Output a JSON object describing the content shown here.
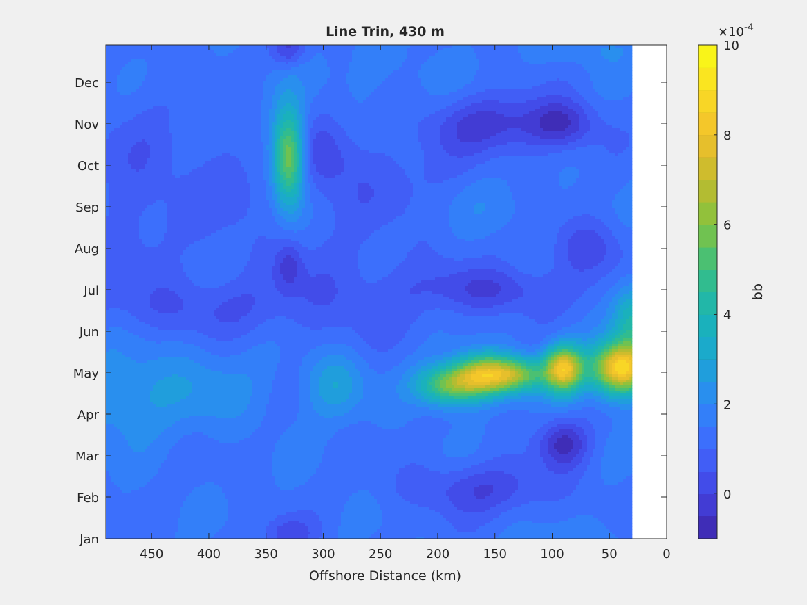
{
  "chart_data": {
    "type": "heatmap",
    "title": "Line Trin, 430 m",
    "xlabel": "Offshore Distance (km)",
    "ylabel": "",
    "x_reversed": true,
    "xlim": [
      0,
      490
    ],
    "x_ticks": [
      "450",
      "400",
      "350",
      "300",
      "250",
      "200",
      "150",
      "100",
      "50",
      "0"
    ],
    "x_tick_values": [
      450,
      400,
      350,
      300,
      250,
      200,
      150,
      100,
      50,
      0
    ],
    "y_ticks": [
      "Jan",
      "Feb",
      "Mar",
      "Apr",
      "May",
      "Jun",
      "Jul",
      "Aug",
      "Sep",
      "Oct",
      "Nov",
      "Dec"
    ],
    "y_range_months": [
      1,
      12.9
    ],
    "data_x_extent_km": [
      30,
      490
    ],
    "colorbar": {
      "label": "bb",
      "exponent_label": "×10",
      "exponent": "-4",
      "ticks": [
        "0",
        "2",
        "4",
        "6",
        "8",
        "10"
      ],
      "tick_values": [
        0,
        2,
        4,
        6,
        8,
        10
      ],
      "range": [
        -1,
        10
      ],
      "levels": 22
    },
    "colormap": [
      "#3e26a8",
      "#4343e2",
      "#4067fd",
      "#2e87f7",
      "#1ba6d3",
      "#1ab4b4",
      "#38bf83",
      "#82c340",
      "#c3ba2d",
      "#f2c02c",
      "#fadd24",
      "#f9fb15"
    ],
    "features": [
      {
        "name": "background",
        "value": 1.4
      },
      {
        "x": 40,
        "y": 5.1,
        "sx": 18,
        "sy": 0.45,
        "amp": 7.4
      },
      {
        "x": 90,
        "y": 5.1,
        "sx": 12,
        "sy": 0.4,
        "amp": 6.5
      },
      {
        "x": 130,
        "y": 4.95,
        "sx": 18,
        "sy": 0.3,
        "amp": 4.0
      },
      {
        "x": 160,
        "y": 4.95,
        "sx": 18,
        "sy": 0.35,
        "amp": 5.0
      },
      {
        "x": 190,
        "y": 4.7,
        "sx": 20,
        "sy": 0.35,
        "amp": 4.3
      },
      {
        "x": 330,
        "y": 10.2,
        "sx": 10,
        "sy": 0.8,
        "amp": 5.2
      },
      {
        "x": 290,
        "y": 4.7,
        "sx": 18,
        "sy": 0.55,
        "amp": 1.5
      },
      {
        "x": 420,
        "y": 4.6,
        "sx": 50,
        "sy": 0.7,
        "amp": 0.9
      },
      {
        "x": 480,
        "y": 4.4,
        "sx": 30,
        "sy": 0.8,
        "amp": 0.8
      },
      {
        "x": 30,
        "y": 6.3,
        "sx": 12,
        "sy": 0.6,
        "amp": 2.5
      },
      {
        "x": 150,
        "y": 11.0,
        "sx": 40,
        "sy": 0.5,
        "amp": -1.6
      },
      {
        "x": 90,
        "y": 11.0,
        "sx": 20,
        "sy": 0.4,
        "amp": -1.6
      },
      {
        "x": 90,
        "y": 3.3,
        "sx": 15,
        "sy": 0.4,
        "amp": -2.0
      },
      {
        "x": 160,
        "y": 2.2,
        "sx": 45,
        "sy": 0.45,
        "amp": -1.3
      },
      {
        "x": 150,
        "y": 7.0,
        "sx": 45,
        "sy": 0.4,
        "amp": -1.3
      },
      {
        "x": 70,
        "y": 8.0,
        "sx": 22,
        "sy": 0.5,
        "amp": -1.2
      },
      {
        "x": 300,
        "y": 10.3,
        "sx": 20,
        "sy": 0.6,
        "amp": -1.0
      },
      {
        "x": 330,
        "y": 7.6,
        "sx": 8,
        "sy": 0.4,
        "amp": -1.2
      },
      {
        "x": 280,
        "y": 7.0,
        "sx": 60,
        "sy": 0.9,
        "amp": -0.7
      },
      {
        "x": 420,
        "y": 6.6,
        "sx": 70,
        "sy": 0.5,
        "amp": -0.8
      },
      {
        "x": 460,
        "y": 9.5,
        "sx": 35,
        "sy": 1.6,
        "amp": -0.7
      },
      {
        "x": 380,
        "y": 9.5,
        "sx": 25,
        "sy": 1.0,
        "amp": -0.5
      },
      {
        "x": 250,
        "y": 9.6,
        "sx": 60,
        "sy": 0.8,
        "amp": -0.6
      },
      {
        "x": 330,
        "y": 12.8,
        "sx": 10,
        "sy": 0.3,
        "amp": -1.5
      },
      {
        "x": 330,
        "y": 1.1,
        "sx": 15,
        "sy": 0.3,
        "amp": -1.2
      },
      {
        "x": 150,
        "y": 9.0,
        "sx": 35,
        "sy": 0.5,
        "amp": 0.5
      },
      {
        "x": 250,
        "y": 12.2,
        "sx": 50,
        "sy": 0.6,
        "amp": 0.3
      },
      {
        "x": 60,
        "y": 12.8,
        "sx": 35,
        "sy": 0.3,
        "amp": 0.6
      },
      {
        "x": 60,
        "y": 1.0,
        "sx": 40,
        "sy": 0.3,
        "amp": 0.4
      }
    ]
  }
}
